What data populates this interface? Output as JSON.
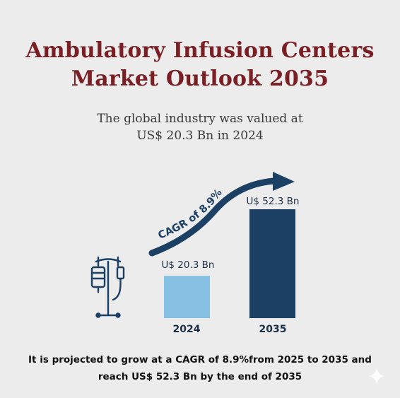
{
  "title": {
    "line1": "Ambulatory Infusion Centers",
    "line2": "Market Outlook 2035"
  },
  "subtitle": {
    "line1": "The global industry was valued at",
    "line2": "US$ 20.3 Bn in 2024"
  },
  "footer": {
    "line1": "It is projected to grow at a CAGR of 8.9%from 2025 to 2035 and",
    "line2": "reach US$ 52.3 Bn by the end of 2035"
  },
  "icons": {
    "iv_drip": "iv-drip-stand-icon",
    "growth_arrow": "curved-arrow-icon",
    "sparkle": "sparkle-icon"
  },
  "colors": {
    "title": "#7a1f24",
    "bar_2024": "#86c0e2",
    "bar_2035": "#1c3f64",
    "arrow": "#1c3f64"
  },
  "chart_data": {
    "type": "bar",
    "categories": [
      "2024",
      "2035"
    ],
    "values": [
      20.3,
      52.3
    ],
    "data_labels": [
      "U$ 20.3 Bn",
      "U$ 52.3 Bn"
    ],
    "annotation": "CAGR of 8.9%",
    "title": "",
    "xlabel": "",
    "ylabel": "",
    "ylim": [
      0,
      52.3
    ]
  }
}
